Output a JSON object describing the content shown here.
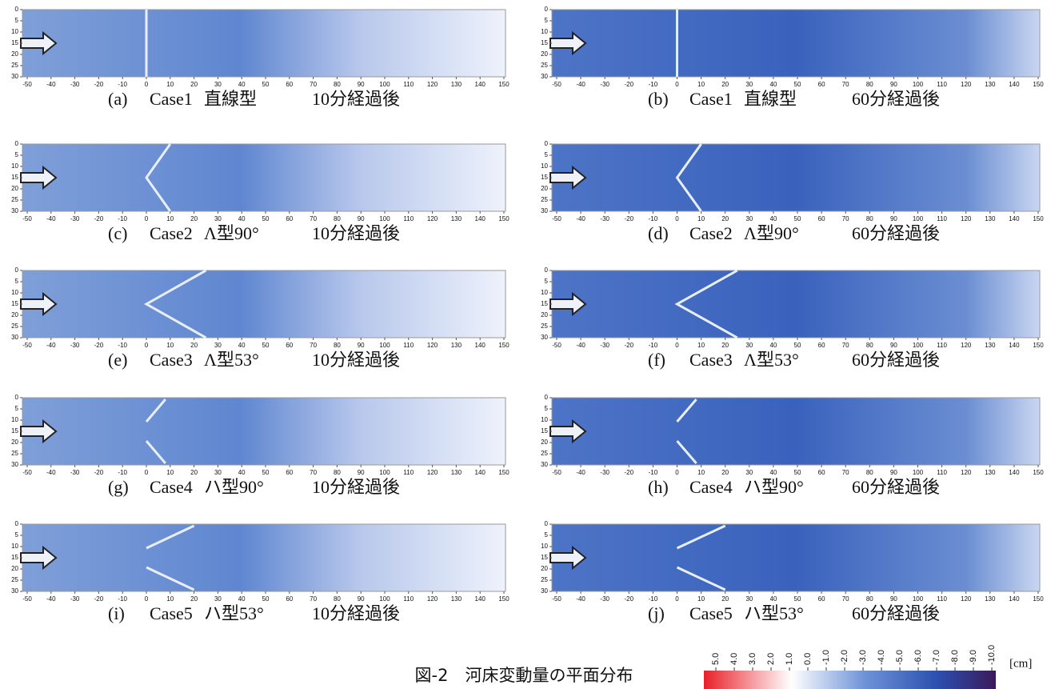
{
  "figure": {
    "x_ticks": [
      -50,
      -40,
      -30,
      -20,
      -10,
      0,
      10,
      20,
      30,
      40,
      50,
      60,
      70,
      80,
      90,
      100,
      110,
      120,
      130,
      140,
      150
    ],
    "y_ticks": [
      0,
      5,
      10,
      15,
      20,
      25,
      30
    ],
    "panels": [
      {
        "label": "(a)",
        "case": "Case1",
        "shape": "直線型",
        "time": "10分経過後"
      },
      {
        "label": "(b)",
        "case": "Case1",
        "shape": "直線型",
        "time": "60分経過後"
      },
      {
        "label": "(c)",
        "case": "Case2",
        "shape": "Λ型90°",
        "time": "10分経過後"
      },
      {
        "label": "(d)",
        "case": "Case2",
        "shape": "Λ型90°",
        "time": "60分経過後"
      },
      {
        "label": "(e)",
        "case": "Case3",
        "shape": "Λ型53°",
        "time": "10分経過後"
      },
      {
        "label": "(f)",
        "case": "Case3",
        "shape": "Λ型53°",
        "time": "60分経過後"
      },
      {
        "label": "(g)",
        "case": "Case4",
        "shape": "ハ型90°",
        "time": "10分経過後"
      },
      {
        "label": "(h)",
        "case": "Case4",
        "shape": "ハ型90°",
        "time": "60分経過後"
      },
      {
        "label": "(i)",
        "case": "Case5",
        "shape": "ハ型53°",
        "time": "10分経過後"
      },
      {
        "label": "(j)",
        "case": "Case5",
        "shape": "ハ型53°",
        "time": "60分経過後"
      }
    ],
    "caption": "図-2　河床変動量の平面分布",
    "colorbar": {
      "unit": "[cm]",
      "ticks": [
        {
          "value": 5,
          "label": "5.0"
        },
        {
          "value": 4,
          "label": "4.0"
        },
        {
          "value": 3,
          "label": "3.0"
        },
        {
          "value": 2,
          "label": "2.0"
        },
        {
          "value": 1,
          "label": "1.0"
        },
        {
          "value": 0,
          "label": "0.0"
        },
        {
          "value": -1,
          "label": "-1.0"
        },
        {
          "value": -2,
          "label": "-2.0"
        },
        {
          "value": -3,
          "label": "-3.0"
        },
        {
          "value": -4,
          "label": "-4.0"
        },
        {
          "value": -5,
          "label": "-5.0"
        },
        {
          "value": -6,
          "label": "-6.0"
        },
        {
          "value": -7,
          "label": "-7.0"
        },
        {
          "value": -8,
          "label": "-8.0"
        },
        {
          "value": -9,
          "label": "-9.0"
        },
        {
          "value": -10,
          "label": "-10.0"
        }
      ]
    }
  }
}
